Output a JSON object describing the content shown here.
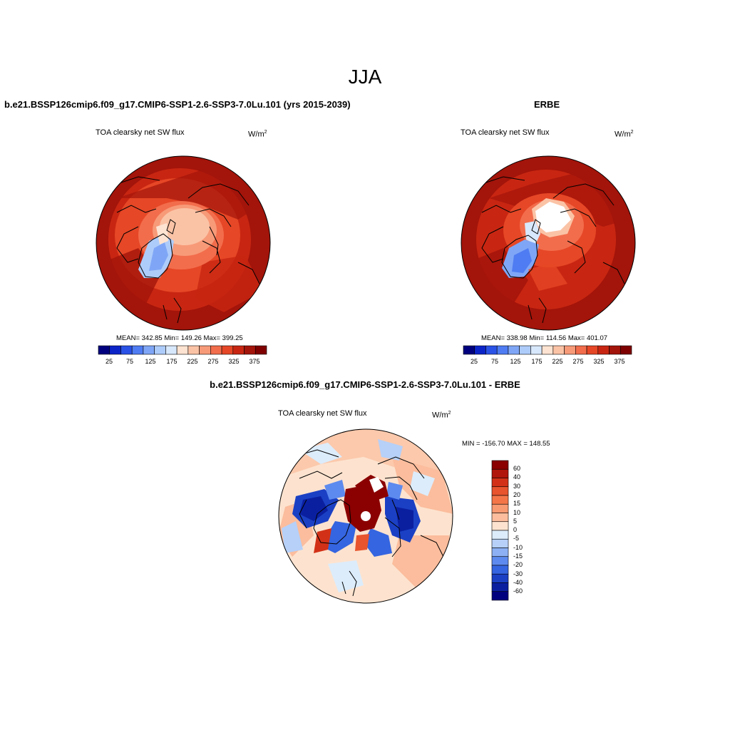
{
  "title": "JJA",
  "panels": [
    {
      "heading": "b.e21.BSSP126cmip6.f09_g17.CMIP6-SSP1-2.6-SSP3-7.0Lu.101 (yrs 2015-2039)",
      "variable": "TOA clearsky net SW flux",
      "units": "W/m",
      "units_sup": "2",
      "stats": "MEAN= 342.85  Min= 149.26  Max= 399.25"
    },
    {
      "heading": "ERBE",
      "variable": "TOA clearsky net SW flux",
      "units": "W/m",
      "units_sup": "2",
      "stats": "MEAN= 338.98  Min= 114.56  Max= 401.07"
    },
    {
      "heading": "b.e21.BSSP126cmip6.f09_g17.CMIP6-SSP1-2.6-SSP3-7.0Lu.101 - ERBE",
      "variable": "TOA clearsky net SW flux",
      "units": "W/m",
      "units_sup": "2",
      "stats": "MIN = -156.70 MAX = 148.55"
    }
  ],
  "colorbar_abs": {
    "tick_labels": [
      "25",
      "75",
      "125",
      "175",
      "225",
      "275",
      "325",
      "375"
    ],
    "colors": [
      "#00007f",
      "#0b24c8",
      "#2a52e6",
      "#4f7cf2",
      "#7fa6f6",
      "#aeccfa",
      "#d8e8fc",
      "#fde3d1",
      "#fbc3a6",
      "#f79a78",
      "#f26d4c",
      "#e64726",
      "#c82612",
      "#a3140a",
      "#7f0000"
    ]
  },
  "colorbar_diff": {
    "labels": [
      "60",
      "40",
      "30",
      "20",
      "15",
      "10",
      "5",
      "0",
      "-5",
      "-10",
      "-15",
      "-20",
      "-30",
      "-40",
      "-60"
    ],
    "colors": [
      "#8b0000",
      "#b0160c",
      "#d23117",
      "#e8542d",
      "#f47648",
      "#f89a72",
      "#fbbd9d",
      "#fde3cf",
      "#dcecfb",
      "#b6d0f8",
      "#8cb0f3",
      "#5d8aee",
      "#3565e0",
      "#1b40c4",
      "#0a1fa0",
      "#00007f"
    ]
  },
  "icons": {
    "polar_map_1": "arctic-polar-map",
    "polar_map_2": "arctic-polar-map",
    "polar_map_3": "arctic-polar-difference-map"
  }
}
